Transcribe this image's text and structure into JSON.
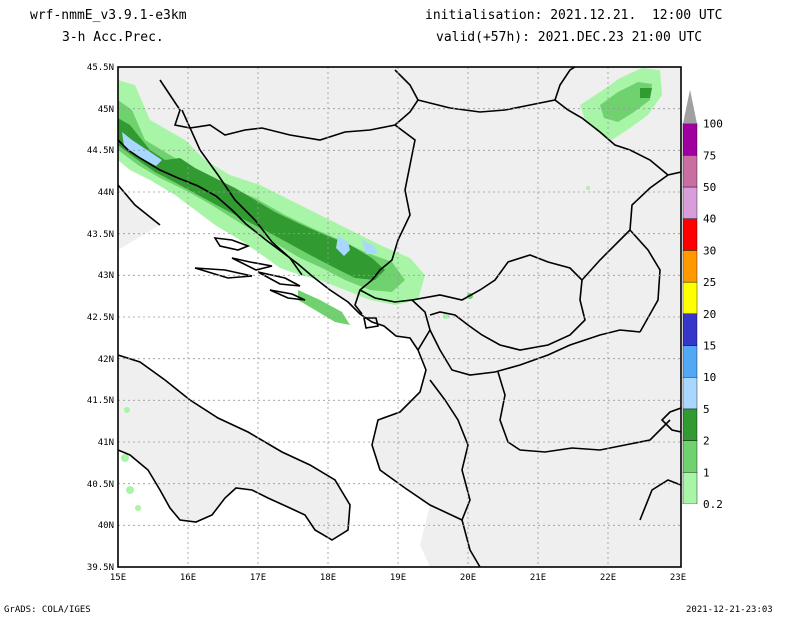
{
  "header": {
    "model": "wrf-nmmE_v3.9.1-e3km",
    "field": "3-h Acc.Prec.",
    "init": "initialisation: 2021.12.21.  12:00 UTC",
    "valid": "valid(+57h): 2021.DEC.23 21:00 UTC"
  },
  "footer": {
    "credit": "GrADS: COLA/IGES",
    "timestamp": "2021-12-21-23:03"
  },
  "map": {
    "lat_labels": [
      "45.5N",
      "45N",
      "44.5N",
      "44N",
      "43.5N",
      "43N",
      "42.5N",
      "42N",
      "41.5N",
      "41N",
      "40.5N",
      "40N",
      "39.5N"
    ],
    "lon_labels": [
      "15E",
      "16E",
      "17E",
      "18E",
      "19E",
      "20E",
      "21E",
      "22E",
      "23E"
    ],
    "colors": {
      "land": "#efefef",
      "sea": "#ffffff",
      "border": "#000000",
      "grid": "#9a9a9a"
    }
  },
  "legend": {
    "classes": [
      {
        "label": "0.2",
        "color": "#a8f5a8"
      },
      {
        "label": "1",
        "color": "#6fd26f"
      },
      {
        "label": "2",
        "color": "#319a31"
      },
      {
        "label": "5",
        "color": "#a8d8ff"
      },
      {
        "label": "10",
        "color": "#53a8f5"
      },
      {
        "label": "15",
        "color": "#3636c8"
      },
      {
        "label": "20",
        "color": "#ffff00"
      },
      {
        "label": "25",
        "color": "#ff9900"
      },
      {
        "label": "30",
        "color": "#ff0000"
      },
      {
        "label": "40",
        "color": "#d99ed9"
      },
      {
        "label": "50",
        "color": "#c86ea0"
      },
      {
        "label": "75",
        "color": "#a000a0"
      },
      {
        "label": "100",
        "color": "#a0a0a0"
      }
    ]
  }
}
